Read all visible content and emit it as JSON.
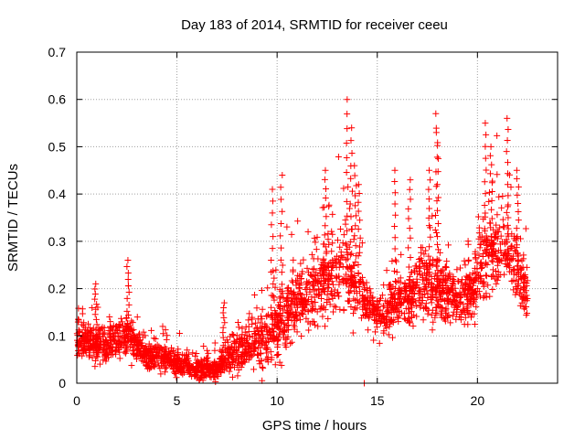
{
  "chart_data": {
    "type": "scatter",
    "title": "Day 183 of 2014, SRMTID for receiver ceeu",
    "xlabel": "GPS time / hours",
    "ylabel": "SRMTID / TECUs",
    "xlim": [
      0,
      24
    ],
    "ylim": [
      0,
      0.7
    ],
    "xticks": [
      0,
      5,
      10,
      15,
      20
    ],
    "yticks": [
      0,
      0.1,
      0.2,
      0.3,
      0.4,
      0.5,
      0.6,
      0.7
    ],
    "grid": true,
    "marker": "+",
    "color": "#ff0000",
    "series": [
      {
        "name": "SRMTID",
        "envelope": {
          "x": [
            0.0,
            0.5,
            1.0,
            1.5,
            2.0,
            2.5,
            3.0,
            3.5,
            4.0,
            4.5,
            5.0,
            5.5,
            6.0,
            6.5,
            7.0,
            7.5,
            8.0,
            8.5,
            9.0,
            9.5,
            10.0,
            10.5,
            11.0,
            11.5,
            12.0,
            12.5,
            13.0,
            13.5,
            14.0,
            14.5,
            15.0,
            15.5,
            16.0,
            16.5,
            17.0,
            17.5,
            18.0,
            18.5,
            19.0,
            19.5,
            20.0,
            20.5,
            21.0,
            21.5,
            22.0,
            22.5
          ],
          "mean": [
            0.09,
            0.09,
            0.08,
            0.09,
            0.09,
            0.1,
            0.08,
            0.06,
            0.06,
            0.05,
            0.04,
            0.04,
            0.03,
            0.03,
            0.03,
            0.05,
            0.07,
            0.08,
            0.09,
            0.1,
            0.12,
            0.15,
            0.17,
            0.19,
            0.2,
            0.22,
            0.24,
            0.23,
            0.2,
            0.17,
            0.15,
            0.15,
            0.17,
            0.18,
            0.2,
            0.21,
            0.2,
            0.19,
            0.17,
            0.19,
            0.22,
            0.26,
            0.29,
            0.28,
            0.24,
            0.18
          ],
          "spread": [
            0.04,
            0.04,
            0.05,
            0.05,
            0.05,
            0.06,
            0.04,
            0.04,
            0.04,
            0.03,
            0.03,
            0.03,
            0.03,
            0.03,
            0.03,
            0.05,
            0.05,
            0.06,
            0.07,
            0.08,
            0.1,
            0.1,
            0.09,
            0.09,
            0.1,
            0.1,
            0.11,
            0.11,
            0.08,
            0.07,
            0.06,
            0.07,
            0.08,
            0.08,
            0.09,
            0.1,
            0.09,
            0.08,
            0.07,
            0.08,
            0.1,
            0.11,
            0.11,
            0.1,
            0.09,
            0.07
          ]
        },
        "count": 2600,
        "peaks": [
          {
            "x": 0.95,
            "y": 0.21
          },
          {
            "x": 2.55,
            "y": 0.26
          },
          {
            "x": 7.35,
            "y": 0.17
          },
          {
            "x": 9.75,
            "y": 0.41
          },
          {
            "x": 10.2,
            "y": 0.44
          },
          {
            "x": 12.4,
            "y": 0.45
          },
          {
            "x": 13.5,
            "y": 0.6
          },
          {
            "x": 13.7,
            "y": 0.54
          },
          {
            "x": 13.9,
            "y": 0.46
          },
          {
            "x": 14.1,
            "y": 0.42
          },
          {
            "x": 15.9,
            "y": 0.45
          },
          {
            "x": 16.6,
            "y": 0.43
          },
          {
            "x": 17.6,
            "y": 0.45
          },
          {
            "x": 17.95,
            "y": 0.57
          },
          {
            "x": 18.0,
            "y": 0.53
          },
          {
            "x": 20.4,
            "y": 0.55
          },
          {
            "x": 20.7,
            "y": 0.5
          },
          {
            "x": 21.5,
            "y": 0.56
          },
          {
            "x": 22.0,
            "y": 0.45
          },
          {
            "x": 14.35,
            "y": 0.0
          }
        ]
      }
    ]
  }
}
